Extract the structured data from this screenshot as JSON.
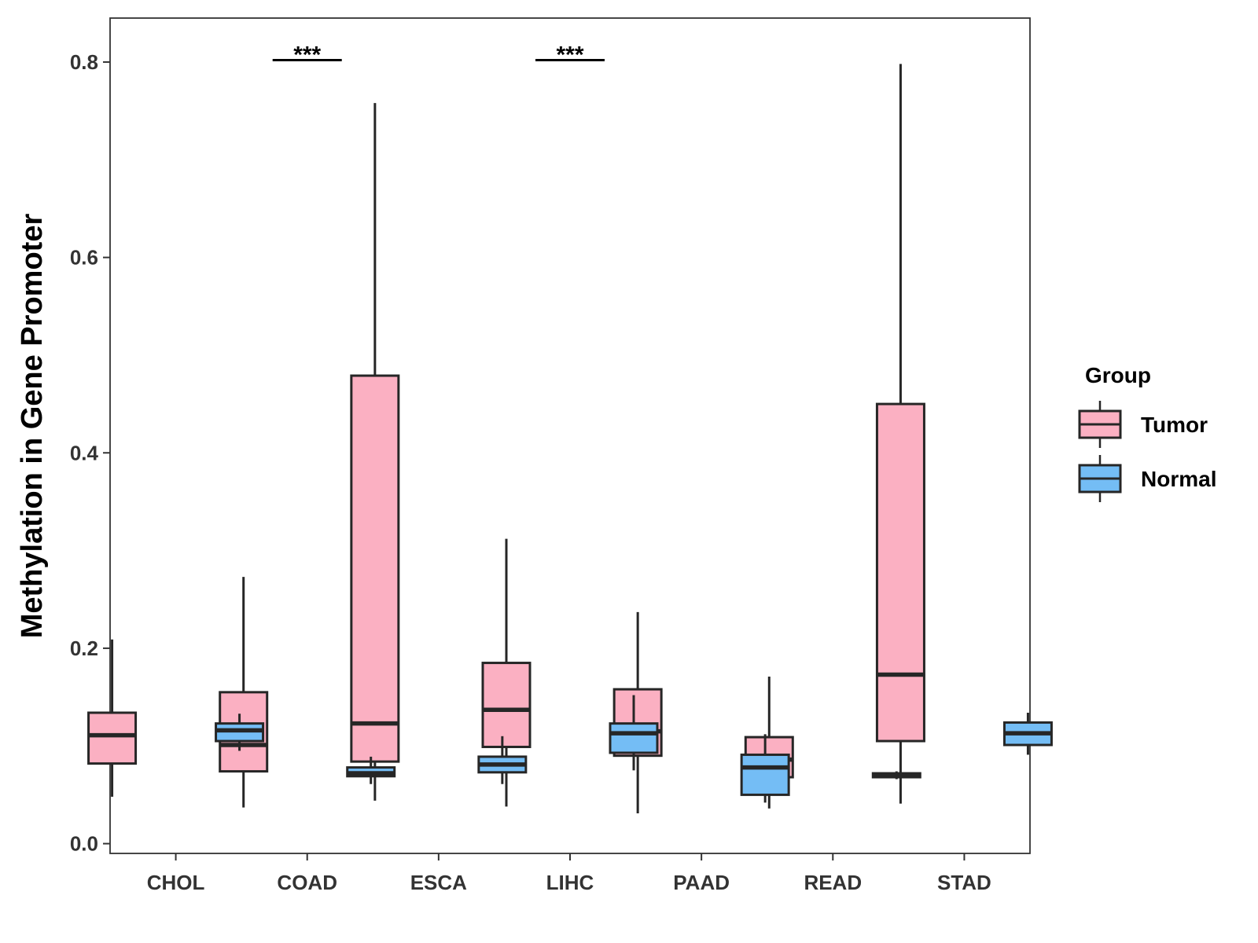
{
  "chart_data": {
    "type": "boxplot",
    "ylabel": "Methylation in Gene Promoter",
    "xlabel": "",
    "ylim": [
      -0.01,
      0.845
    ],
    "yticks": [
      "0.0",
      "0.2",
      "0.4",
      "0.6",
      "0.8"
    ],
    "ytick_values": [
      0.0,
      0.2,
      0.4,
      0.6,
      0.8
    ],
    "categories": [
      "CHOL",
      "COAD",
      "ESCA",
      "LIHC",
      "PAAD",
      "READ",
      "STAD"
    ],
    "legend": {
      "title": "Group",
      "position": "right",
      "entries": [
        {
          "name": "Tumor",
          "color": "#FBB0C2"
        },
        {
          "name": "Normal",
          "color": "#74BDF5"
        }
      ]
    },
    "series": [
      {
        "name": "Tumor",
        "color": "#FBB0C2",
        "boxes": [
          {
            "category": "CHOL",
            "min": 0.048,
            "q1": 0.082,
            "median": 0.111,
            "q3": 0.134,
            "max": 0.209
          },
          {
            "category": "COAD",
            "min": 0.037,
            "q1": 0.074,
            "median": 0.101,
            "q3": 0.155,
            "max": 0.273
          },
          {
            "category": "ESCA",
            "min": 0.044,
            "q1": 0.084,
            "median": 0.123,
            "q3": 0.479,
            "max": 0.758
          },
          {
            "category": "LIHC",
            "min": 0.038,
            "q1": 0.099,
            "median": 0.137,
            "q3": 0.185,
            "max": 0.312
          },
          {
            "category": "PAAD",
            "min": 0.031,
            "q1": 0.09,
            "median": 0.115,
            "q3": 0.158,
            "max": 0.237
          },
          {
            "category": "READ",
            "min": 0.036,
            "q1": 0.068,
            "median": 0.086,
            "q3": 0.109,
            "max": 0.171
          },
          {
            "category": "STAD",
            "min": 0.041,
            "q1": 0.105,
            "median": 0.173,
            "q3": 0.45,
            "max": 0.798
          }
        ]
      },
      {
        "name": "Normal",
        "color": "#74BDF5",
        "boxes": [
          {
            "category": "CHOL",
            "min": 0.095,
            "q1": 0.105,
            "median": 0.116,
            "q3": 0.123,
            "max": 0.133
          },
          {
            "category": "COAD",
            "min": 0.061,
            "q1": 0.069,
            "median": 0.072,
            "q3": 0.078,
            "max": 0.089
          },
          {
            "category": "ESCA",
            "min": 0.061,
            "q1": 0.073,
            "median": 0.081,
            "q3": 0.089,
            "max": 0.11
          },
          {
            "category": "LIHC",
            "min": 0.075,
            "q1": 0.093,
            "median": 0.113,
            "q3": 0.123,
            "max": 0.152
          },
          {
            "category": "PAAD",
            "min": 0.042,
            "q1": 0.05,
            "median": 0.078,
            "q3": 0.091,
            "max": 0.112
          },
          {
            "category": "READ",
            "min": 0.066,
            "q1": 0.068,
            "median": 0.07,
            "q3": 0.072,
            "max": 0.074
          },
          {
            "category": "STAD",
            "min": 0.091,
            "q1": 0.101,
            "median": 0.113,
            "q3": 0.124,
            "max": 0.134
          }
        ]
      }
    ],
    "annotations": [
      {
        "category": "COAD",
        "label": "***",
        "y": 0.802
      },
      {
        "category": "LIHC",
        "label": "***",
        "y": 0.802
      }
    ]
  }
}
